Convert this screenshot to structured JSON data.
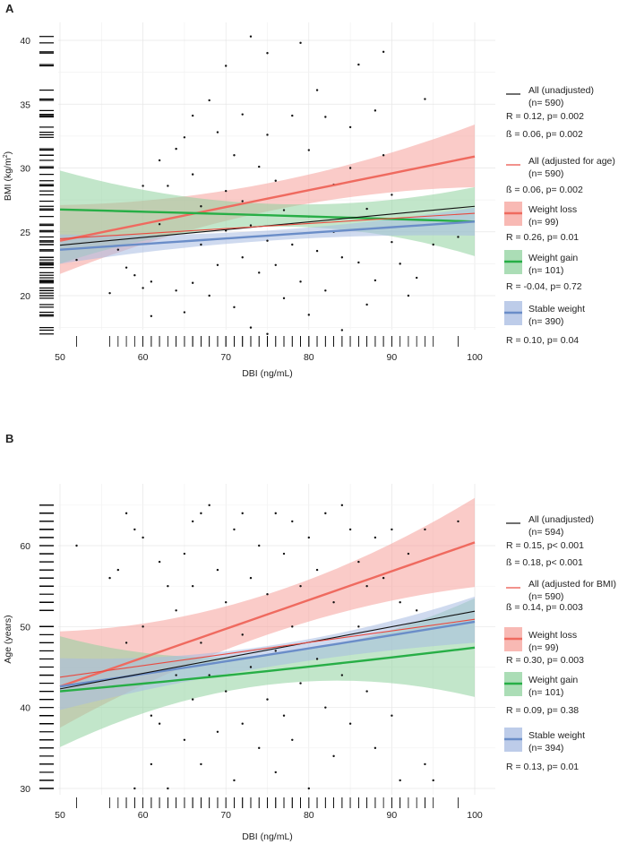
{
  "chart_data": [
    {
      "panel_label": "A",
      "type": "scatter",
      "xlabel": "DBI (ng/mL)",
      "ylabel": "BMI (kg/m",
      "ylabel_sup": "2",
      "ylabel_end": ")",
      "xlim": [
        50,
        100
      ],
      "ylim": [
        17.3,
        41.4
      ],
      "xticks": [
        50,
        60,
        70,
        80,
        90,
        100
      ],
      "yticks": [
        20,
        25,
        30,
        35,
        40
      ],
      "grid": true,
      "legend_position": "right",
      "points": [
        [
          52,
          22.8
        ],
        [
          56,
          20.2
        ],
        [
          57,
          23.6
        ],
        [
          58,
          22.2
        ],
        [
          59,
          21.6
        ],
        [
          60,
          28.6
        ],
        [
          60,
          20.6
        ],
        [
          61,
          21.1
        ],
        [
          61,
          18.4
        ],
        [
          62,
          30.6
        ],
        [
          62,
          25.6
        ],
        [
          63,
          28.6
        ],
        [
          64,
          31.5
        ],
        [
          64,
          20.4
        ],
        [
          65,
          32.4
        ],
        [
          65,
          18.7
        ],
        [
          66,
          29.5
        ],
        [
          66,
          21.0
        ],
        [
          66,
          34.1
        ],
        [
          67,
          24.0
        ],
        [
          67,
          27.0
        ],
        [
          68,
          35.3
        ],
        [
          68,
          20.0
        ],
        [
          69,
          32.8
        ],
        [
          69,
          22.4
        ],
        [
          70,
          38.0
        ],
        [
          70,
          28.2
        ],
        [
          70,
          25.1
        ],
        [
          71,
          31.0
        ],
        [
          71,
          19.1
        ],
        [
          72,
          34.2
        ],
        [
          72,
          23.0
        ],
        [
          72,
          27.4
        ],
        [
          73,
          40.3
        ],
        [
          73,
          17.5
        ],
        [
          73,
          25.5
        ],
        [
          74,
          30.1
        ],
        [
          74,
          21.8
        ],
        [
          75,
          39.0
        ],
        [
          75,
          32.6
        ],
        [
          75,
          24.3
        ],
        [
          75,
          17.0
        ],
        [
          76,
          29.0
        ],
        [
          76,
          22.4
        ],
        [
          77,
          26.7
        ],
        [
          77,
          19.8
        ],
        [
          78,
          34.1
        ],
        [
          78,
          24.0
        ],
        [
          79,
          39.8
        ],
        [
          79,
          21.1
        ],
        [
          80,
          31.4
        ],
        [
          80,
          26.2
        ],
        [
          80,
          18.5
        ],
        [
          81,
          36.1
        ],
        [
          81,
          23.5
        ],
        [
          82,
          34.0
        ],
        [
          82,
          20.4
        ],
        [
          83,
          28.7
        ],
        [
          83,
          25.0
        ],
        [
          84,
          23.0
        ],
        [
          84,
          17.3
        ],
        [
          85,
          33.2
        ],
        [
          85,
          30.0
        ],
        [
          86,
          38.1
        ],
        [
          86,
          22.6
        ],
        [
          87,
          26.8
        ],
        [
          87,
          19.3
        ],
        [
          88,
          34.5
        ],
        [
          88,
          21.2
        ],
        [
          89,
          31.0
        ],
        [
          89,
          39.1
        ],
        [
          90,
          27.9
        ],
        [
          90,
          24.2
        ],
        [
          91,
          22.5
        ],
        [
          92,
          20.0
        ],
        [
          93,
          21.4
        ],
        [
          94,
          35.4
        ],
        [
          95,
          24.0
        ],
        [
          98,
          24.6
        ]
      ],
      "series": [
        {
          "name": "Weight loss",
          "color": "#ef6a5f",
          "band_color": "#f5a19b",
          "x": [
            50,
            75,
            100
          ],
          "y": [
            24.3,
            27.6,
            30.9
          ],
          "lower": [
            21.7,
            26.6,
            28.5
          ],
          "upper": [
            27.1,
            28.8,
            33.4
          ]
        },
        {
          "name": "Weight gain",
          "color": "#27ae46",
          "band_color": "#8fd19e",
          "x": [
            50,
            75,
            100
          ],
          "y": [
            26.75,
            26.3,
            25.8
          ],
          "lower": [
            22.5,
            25.4,
            23.1
          ],
          "upper": [
            29.8,
            27.2,
            28.5
          ]
        },
        {
          "name": "Stable weight",
          "color": "#6a8dc8",
          "band_color": "#a7bbe2",
          "x": [
            50,
            75,
            100
          ],
          "y": [
            23.6,
            24.7,
            25.8
          ],
          "lower": [
            22.5,
            24.3,
            24.7
          ],
          "upper": [
            24.8,
            25.1,
            26.9
          ]
        },
        {
          "name": "All (unadjusted)",
          "color": "#111111",
          "x": [
            50,
            100
          ],
          "y": [
            23.95,
            27.0
          ],
          "thin": true
        },
        {
          "name": "All (adjusted for age)",
          "color": "#e8493f",
          "x": [
            50,
            100
          ],
          "y": [
            24.46,
            26.45
          ],
          "thin": true
        }
      ],
      "legend": [
        {
          "key": "line",
          "color": "#111111",
          "lines": [
            "All (unadjusted)",
            "(n= 590)"
          ],
          "stats": [
            "R = 0.12, p= 0.002",
            "ß = 0.06, p= 0.002"
          ]
        },
        {
          "key": "line",
          "color": "#e8493f",
          "lines": [
            "All (adjusted for age)",
            "(n= 590)"
          ],
          "stats": [
            "ß = 0.06, p= 0.002"
          ]
        },
        {
          "key": "band",
          "color": "#ef6a5f",
          "band_color": "#f5a19b",
          "lines": [
            "Weight loss",
            "(n= 99)"
          ],
          "stats": [
            "R = 0.26, p= 0.01"
          ]
        },
        {
          "key": "band",
          "color": "#27ae46",
          "band_color": "#8fd19e",
          "lines": [
            "Weight gain",
            "(n= 101)"
          ],
          "stats": [
            "R = -0.04, p= 0.72"
          ]
        },
        {
          "key": "band",
          "color": "#6a8dc8",
          "band_color": "#a7bbe2",
          "lines": [
            "Stable weight",
            "(n= 390)"
          ],
          "stats": [
            "R = 0.10, p= 0.04"
          ]
        }
      ]
    },
    {
      "panel_label": "B",
      "type": "scatter",
      "xlabel": "DBI (ng/mL)",
      "ylabel": "Age (years)",
      "xlim": [
        50,
        100
      ],
      "ylim": [
        29.2,
        67.6
      ],
      "xticks": [
        50,
        60,
        70,
        80,
        90,
        100
      ],
      "yticks": [
        30,
        40,
        50,
        60
      ],
      "grid": true,
      "legend_position": "right",
      "points": [
        [
          52,
          60
        ],
        [
          56,
          56
        ],
        [
          57,
          57
        ],
        [
          58,
          48
        ],
        [
          58,
          64
        ],
        [
          59,
          62
        ],
        [
          59,
          30
        ],
        [
          60,
          50
        ],
        [
          60,
          61
        ],
        [
          61,
          39
        ],
        [
          61,
          33
        ],
        [
          62,
          58
        ],
        [
          62,
          38
        ],
        [
          63,
          55
        ],
        [
          63,
          30
        ],
        [
          64,
          52
        ],
        [
          64,
          44
        ],
        [
          65,
          59
        ],
        [
          65,
          36
        ],
        [
          66,
          63
        ],
        [
          66,
          55
        ],
        [
          66,
          41
        ],
        [
          67,
          64
        ],
        [
          67,
          48
        ],
        [
          67,
          33
        ],
        [
          68,
          65
        ],
        [
          68,
          44
        ],
        [
          69,
          57
        ],
        [
          69,
          37
        ],
        [
          70,
          53
        ],
        [
          70,
          42
        ],
        [
          71,
          62
        ],
        [
          71,
          31
        ],
        [
          72,
          64
        ],
        [
          72,
          49
        ],
        [
          72,
          38
        ],
        [
          73,
          56
        ],
        [
          73,
          45
        ],
        [
          74,
          60
        ],
        [
          74,
          35
        ],
        [
          75,
          54
        ],
        [
          75,
          41
        ],
        [
          76,
          64
        ],
        [
          76,
          47
        ],
        [
          76,
          32
        ],
        [
          77,
          59
        ],
        [
          77,
          39
        ],
        [
          78,
          63
        ],
        [
          78,
          50
        ],
        [
          78,
          36
        ],
        [
          79,
          55
        ],
        [
          79,
          43
        ],
        [
          80,
          61
        ],
        [
          80,
          30
        ],
        [
          81,
          57
        ],
        [
          81,
          46
        ],
        [
          82,
          64
        ],
        [
          82,
          40
        ],
        [
          83,
          53
        ],
        [
          83,
          34
        ],
        [
          84,
          65
        ],
        [
          84,
          44
        ],
        [
          85,
          62
        ],
        [
          85,
          38
        ],
        [
          86,
          58
        ],
        [
          86,
          50
        ],
        [
          87,
          55
        ],
        [
          87,
          42
        ],
        [
          88,
          61
        ],
        [
          88,
          35
        ],
        [
          89,
          56
        ],
        [
          90,
          62
        ],
        [
          90,
          39
        ],
        [
          91,
          53
        ],
        [
          91,
          31
        ],
        [
          92,
          59
        ],
        [
          93,
          52
        ],
        [
          94,
          62
        ],
        [
          94,
          33
        ],
        [
          95,
          31
        ],
        [
          98,
          63
        ]
      ],
      "series": [
        {
          "name": "Weight loss",
          "color": "#ef6a5f",
          "band_color": "#f5a19b",
          "x": [
            50,
            75,
            100
          ],
          "y": [
            42.6,
            51.5,
            60.4
          ],
          "lower": [
            37.5,
            49.0,
            54.9
          ],
          "upper": [
            49.4,
            54.0,
            65.9
          ]
        },
        {
          "name": "Weight gain",
          "color": "#27ae46",
          "band_color": "#8fd19e",
          "x": [
            50,
            75,
            100
          ],
          "y": [
            42.0,
            44.5,
            47.4
          ],
          "lower": [
            35.1,
            42.8,
            41.3
          ],
          "upper": [
            48.8,
            46.5,
            53.5
          ]
        },
        {
          "name": "Stable weight",
          "color": "#6a8dc8",
          "band_color": "#a7bbe2",
          "x": [
            50,
            75,
            100
          ],
          "y": [
            42.6,
            46.5,
            50.6
          ],
          "lower": [
            39.7,
            45.0,
            48.0
          ],
          "upper": [
            46.1,
            47.6,
            53.7
          ]
        },
        {
          "name": "All (unadjusted)",
          "color": "#111111",
          "x": [
            50,
            100
          ],
          "y": [
            42.3,
            51.9
          ],
          "thin": true
        },
        {
          "name": "All (adjusted for BMI)",
          "color": "#e8493f",
          "x": [
            50,
            100
          ],
          "y": [
            43.75,
            50.9
          ],
          "thin": true
        }
      ],
      "legend": [
        {
          "key": "line",
          "color": "#111111",
          "lines": [
            "All (unadjusted)",
            "(n= 594)"
          ],
          "stats": [
            "R = 0.15, p< 0.001",
            "ß = 0.18, p< 0.001"
          ]
        },
        {
          "key": "line",
          "color": "#e8493f",
          "lines": [
            "All (adjusted for BMI)",
            "(n= 590)"
          ],
          "stats": [
            "ß = 0.14, p= 0.003"
          ]
        },
        {
          "key": "band",
          "color": "#ef6a5f",
          "band_color": "#f5a19b",
          "lines": [
            "Weight loss",
            "(n= 99)"
          ],
          "stats": [
            "R = 0.30, p= 0.003"
          ]
        },
        {
          "key": "band",
          "color": "#27ae46",
          "band_color": "#8fd19e",
          "lines": [
            "Weight gain",
            "(n= 101)"
          ],
          "stats": [
            "R = 0.09, p= 0.38"
          ]
        },
        {
          "key": "band",
          "color": "#6a8dc8",
          "band_color": "#a7bbe2",
          "lines": [
            "Stable weight",
            "(n= 394)"
          ],
          "stats": [
            "R = 0.13, p= 0.01"
          ]
        }
      ]
    }
  ]
}
